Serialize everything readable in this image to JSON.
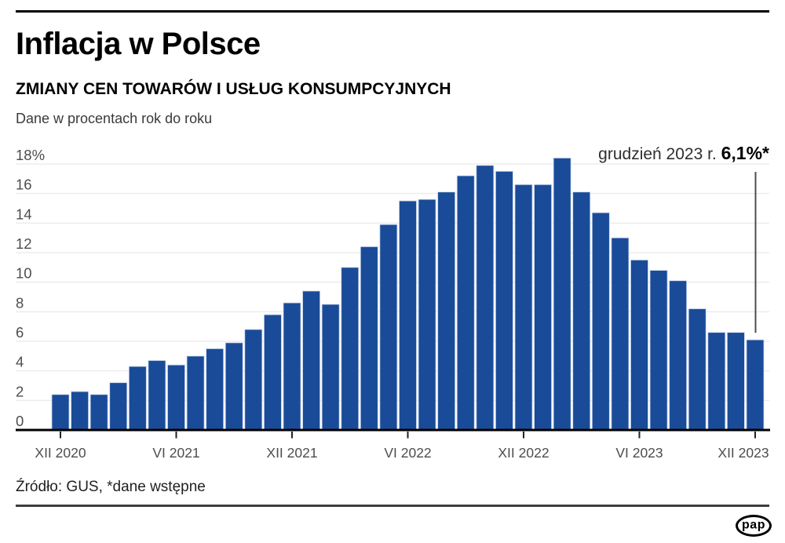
{
  "header": {
    "title": "Inflacja w Polsce",
    "subtitle": "ZMIANY CEN TOWARÓW I USŁUG KONSUMPCYJNYCH",
    "description": "Dane w procentach rok do roku"
  },
  "annotation": {
    "label": "grudzień 2023 r. ",
    "value": "6,1%*"
  },
  "footer": {
    "source": "Źródło: GUS, *dane wstępne",
    "logo_text": "pap"
  },
  "colors": {
    "bar": "#1a4b99",
    "bar_edge": "#c7d5ec",
    "grid": "#ebebeb",
    "axis": "#000000",
    "tick": "#222222",
    "axis_text": "#4d4d4d",
    "annotation_line": "#4d4d4d"
  },
  "chart_data": {
    "type": "bar",
    "title": "Inflacja w Polsce",
    "subtitle": "ZMIANY CEN TOWARÓW I USŁUG KONSUMPCYJNYCH",
    "ylabel": "procent rok do roku",
    "categories": [
      "XII 2020",
      "I 2021",
      "II 2021",
      "III 2021",
      "IV 2021",
      "V 2021",
      "VI 2021",
      "VII 2021",
      "VIII 2021",
      "IX 2021",
      "X 2021",
      "XI 2021",
      "XII 2021",
      "I 2022",
      "II 2022",
      "III 2022",
      "IV 2022",
      "V 2022",
      "VI 2022",
      "VII 2022",
      "VIII 2022",
      "IX 2022",
      "X 2022",
      "XI 2022",
      "XII 2022",
      "I 2023",
      "II 2023",
      "III 2023",
      "IV 2023",
      "V 2023",
      "VI 2023",
      "VII 2023",
      "VIII 2023",
      "IX 2023",
      "X 2023",
      "XI 2023",
      "XII 2023"
    ],
    "values": [
      2.4,
      2.6,
      2.4,
      3.2,
      4.3,
      4.7,
      4.4,
      5.0,
      5.5,
      5.9,
      6.8,
      7.8,
      8.6,
      9.4,
      8.5,
      11.0,
      12.4,
      13.9,
      15.5,
      15.6,
      16.1,
      17.2,
      17.9,
      17.5,
      16.6,
      16.6,
      18.4,
      16.1,
      14.7,
      13.0,
      11.5,
      10.8,
      10.1,
      8.2,
      6.6,
      6.6,
      6.1
    ],
    "ylim": [
      0,
      18
    ],
    "y_ticks": [
      0,
      2,
      4,
      6,
      8,
      10,
      12,
      14,
      16,
      18
    ],
    "y_top_tick_label": "18%",
    "x_tick_labels": [
      "XII 2020",
      "VI 2021",
      "XII 2021",
      "VI 2022",
      "XII 2022",
      "VI 2023",
      "XII 2023"
    ],
    "x_tick_indices": [
      0,
      6,
      12,
      18,
      24,
      30,
      36
    ],
    "grid": "horizontal",
    "legend_position": "none",
    "annotation": {
      "text": "grudzień 2023 r. 6,1%*",
      "points_to": "XII 2023"
    }
  }
}
